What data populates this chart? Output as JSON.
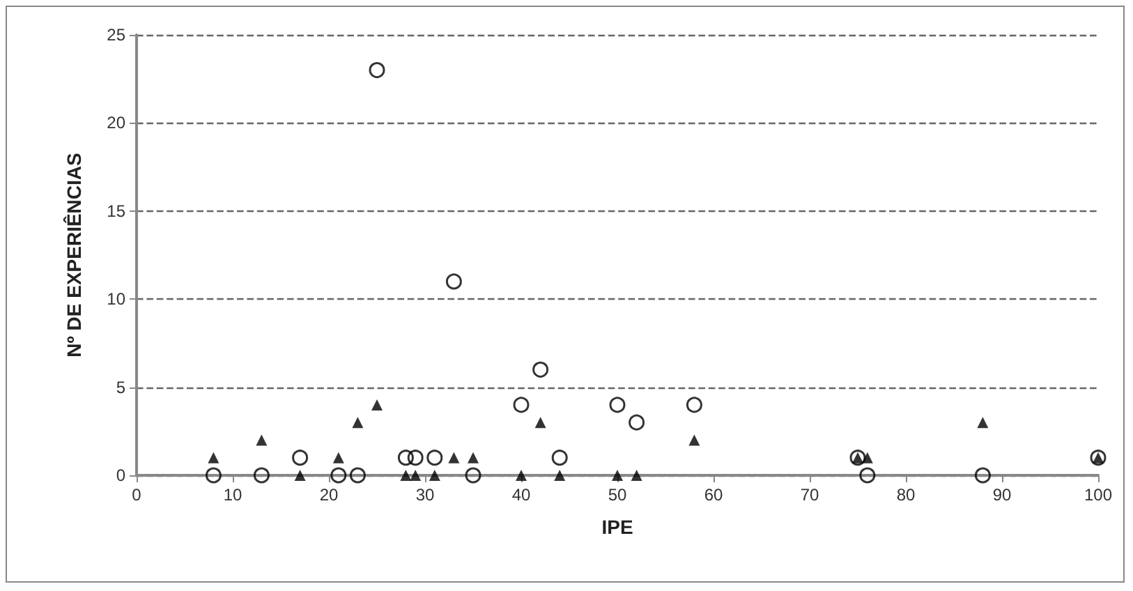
{
  "chart_data": {
    "type": "scatter",
    "xlabel": "IPE",
    "ylabel": "Nº DE EXPERIÊNCIAS",
    "xlim": [
      0,
      100
    ],
    "xticks": [
      0,
      10,
      20,
      30,
      40,
      50,
      60,
      70,
      80,
      90,
      100
    ],
    "ylim": [
      0,
      25
    ],
    "yticks": [
      0,
      5,
      10,
      15,
      20,
      25
    ],
    "grid": "y",
    "series": [
      {
        "color": "#000000",
        "marker": "circle",
        "x": [
          8,
          13,
          17,
          21,
          23,
          25,
          28,
          29,
          31,
          33,
          35,
          40,
          42,
          44,
          50,
          52,
          58,
          75,
          76,
          88,
          100
        ],
        "values": [
          0,
          0,
          1,
          0,
          0,
          23,
          1,
          1,
          1,
          11,
          0,
          4,
          6,
          1,
          4,
          3,
          4,
          1,
          0,
          0,
          1
        ]
      },
      {
        "color": "#000000",
        "marker": "triangle",
        "x": [
          8,
          13,
          17,
          21,
          23,
          25,
          28,
          29,
          31,
          33,
          35,
          40,
          42,
          44,
          50,
          52,
          58,
          75,
          76,
          88,
          100
        ],
        "values": [
          1,
          2,
          0,
          1,
          3,
          4,
          0,
          0,
          0,
          1,
          1,
          0,
          3,
          0,
          0,
          0,
          2,
          1,
          1,
          3,
          1
        ]
      }
    ]
  }
}
